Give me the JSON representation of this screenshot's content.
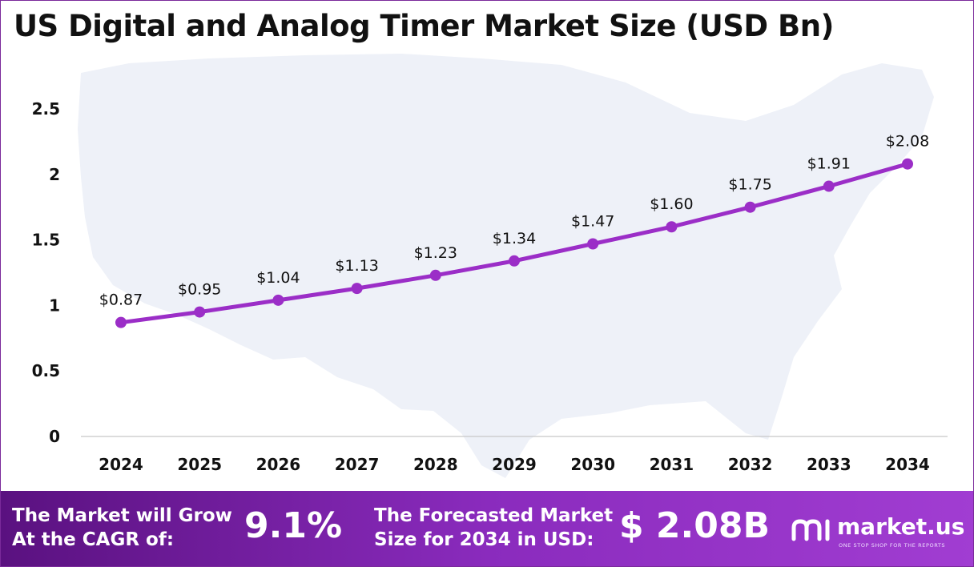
{
  "chart_data": {
    "type": "line",
    "title": "US Digital and Analog Timer Market Size (USD Bn)",
    "categories": [
      "2024",
      "2025",
      "2026",
      "2027",
      "2028",
      "2029",
      "2030",
      "2031",
      "2032",
      "2033",
      "2034"
    ],
    "values": [
      0.87,
      0.95,
      1.04,
      1.13,
      1.23,
      1.34,
      1.47,
      1.6,
      1.75,
      1.91,
      2.08
    ],
    "data_labels": [
      "$0.87",
      "$0.95",
      "$1.04",
      "$1.13",
      "$1.23",
      "$1.34",
      "$1.47",
      "$1.60",
      "$1.75",
      "$1.91",
      "$2.08"
    ],
    "yticks": [
      "0",
      "0.5",
      "1",
      "1.5",
      "2",
      "2.5"
    ],
    "ylim": [
      0,
      2.5
    ],
    "grid": false,
    "xlabel": "",
    "ylabel": "",
    "line_color": "#9b2ec7",
    "background": "map of the United States, light blue-gray"
  },
  "footer": {
    "cagr_label": "The Market will Grow\nAt the CAGR of:",
    "cagr_line1": "The Market will Grow",
    "cagr_line2": "At the CAGR of:",
    "cagr_value": "9.1%",
    "forecast_line1": "The Forecasted Market",
    "forecast_line2": "Size for 2034 in USD:",
    "forecast_value": "$ 2.08B",
    "logo_name": "market.us",
    "logo_tagline": "ONE STOP SHOP FOR THE REPORTS"
  },
  "colors": {
    "accent": "#9b2ec7",
    "footer_start": "#5a1180",
    "footer_end": "#a13dd2",
    "map_fill": "#eef1f8"
  }
}
